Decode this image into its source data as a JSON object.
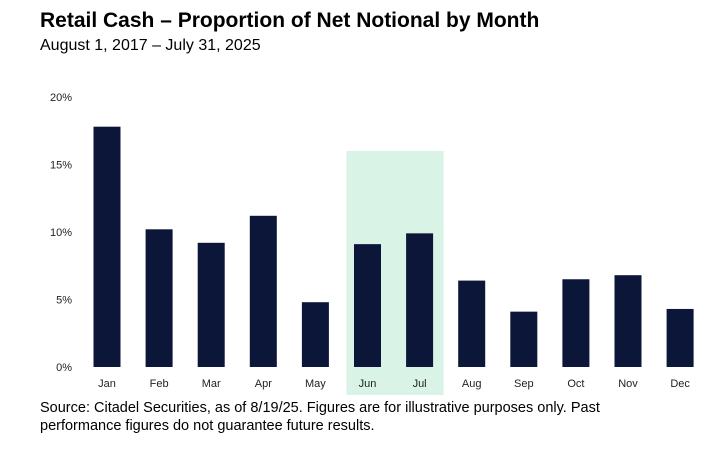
{
  "chart_data": {
    "type": "bar",
    "title": "Retail Cash – Proportion of Net Notional by Month",
    "subtitle": "August 1, 2017 – July 31, 2025",
    "categories": [
      "Jan",
      "Feb",
      "Mar",
      "Apr",
      "May",
      "Jun",
      "Jul",
      "Aug",
      "Sep",
      "Oct",
      "Nov",
      "Dec"
    ],
    "values": [
      17.8,
      10.2,
      9.2,
      11.2,
      4.8,
      9.1,
      9.9,
      6.4,
      4.1,
      6.5,
      6.8,
      4.3
    ],
    "unit": "%",
    "ylim": [
      0,
      20
    ],
    "yticks": [
      0,
      5,
      10,
      15,
      20
    ],
    "ytick_labels": [
      "0%",
      "5%",
      "10%",
      "15%",
      "20%"
    ],
    "xlabel": "",
    "ylabel": "",
    "highlight": {
      "categories": [
        "Jun",
        "Jul"
      ],
      "upper_value": 16.0,
      "color": "#d9f4e6"
    },
    "bar_color": "#0b1638",
    "grid": false
  },
  "footer": {
    "source": "Source: Citadel Securities, as of 8/19/25. Figures are for illustrative purposes only. Past performance figures do not guarantee future results."
  }
}
